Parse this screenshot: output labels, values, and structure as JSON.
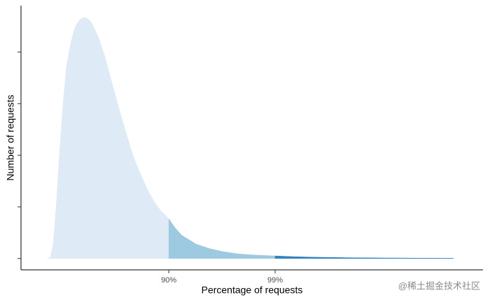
{
  "chart_data": {
    "type": "area",
    "xlabel": "Percentage of requests",
    "ylabel": "Number of requests",
    "watermark": "@稀土掘金技术社区",
    "xlim": [
      0,
      100
    ],
    "ylim": [
      -0.22,
      4.9
    ],
    "xticks": [
      {
        "value": 32,
        "label": "90%"
      },
      {
        "value": 55,
        "label": "99%"
      }
    ],
    "yticks": [
      0,
      1,
      2,
      3,
      4
    ],
    "series": [
      {
        "color": "#deebf7",
        "x": [
          5.8,
          6.4,
          7.0,
          7.6,
          8.3,
          9.1,
          9.8,
          10.6,
          11.4,
          12.1,
          12.9,
          13.6,
          14.4,
          15.2,
          16.7,
          18.2,
          19.7,
          21.2,
          22.7,
          24.2,
          25.8,
          27.3,
          28.8,
          30.3,
          32.0
        ],
        "values": [
          0,
          0.03,
          0.3,
          1.0,
          2.0,
          3.0,
          3.7,
          4.1,
          4.4,
          4.55,
          4.64,
          4.67,
          4.65,
          4.58,
          4.3,
          3.9,
          3.4,
          2.9,
          2.45,
          2.0,
          1.65,
          1.35,
          1.1,
          0.92,
          0.77
        ]
      },
      {
        "color": "#9ecae1",
        "x": [
          32.0,
          33.3,
          34.8,
          37.9,
          40.9,
          43.9,
          47.0,
          50.0,
          55.0
        ],
        "values": [
          0.77,
          0.6,
          0.45,
          0.28,
          0.19,
          0.13,
          0.09,
          0.07,
          0.05
        ]
      },
      {
        "color": "#3182bd",
        "x": [
          55.0,
          59.1,
          63.6,
          71.2,
          78.8,
          86.4,
          93.6
        ],
        "values": [
          0.05,
          0.035,
          0.025,
          0.015,
          0.01,
          0.007,
          0.005
        ]
      }
    ]
  }
}
